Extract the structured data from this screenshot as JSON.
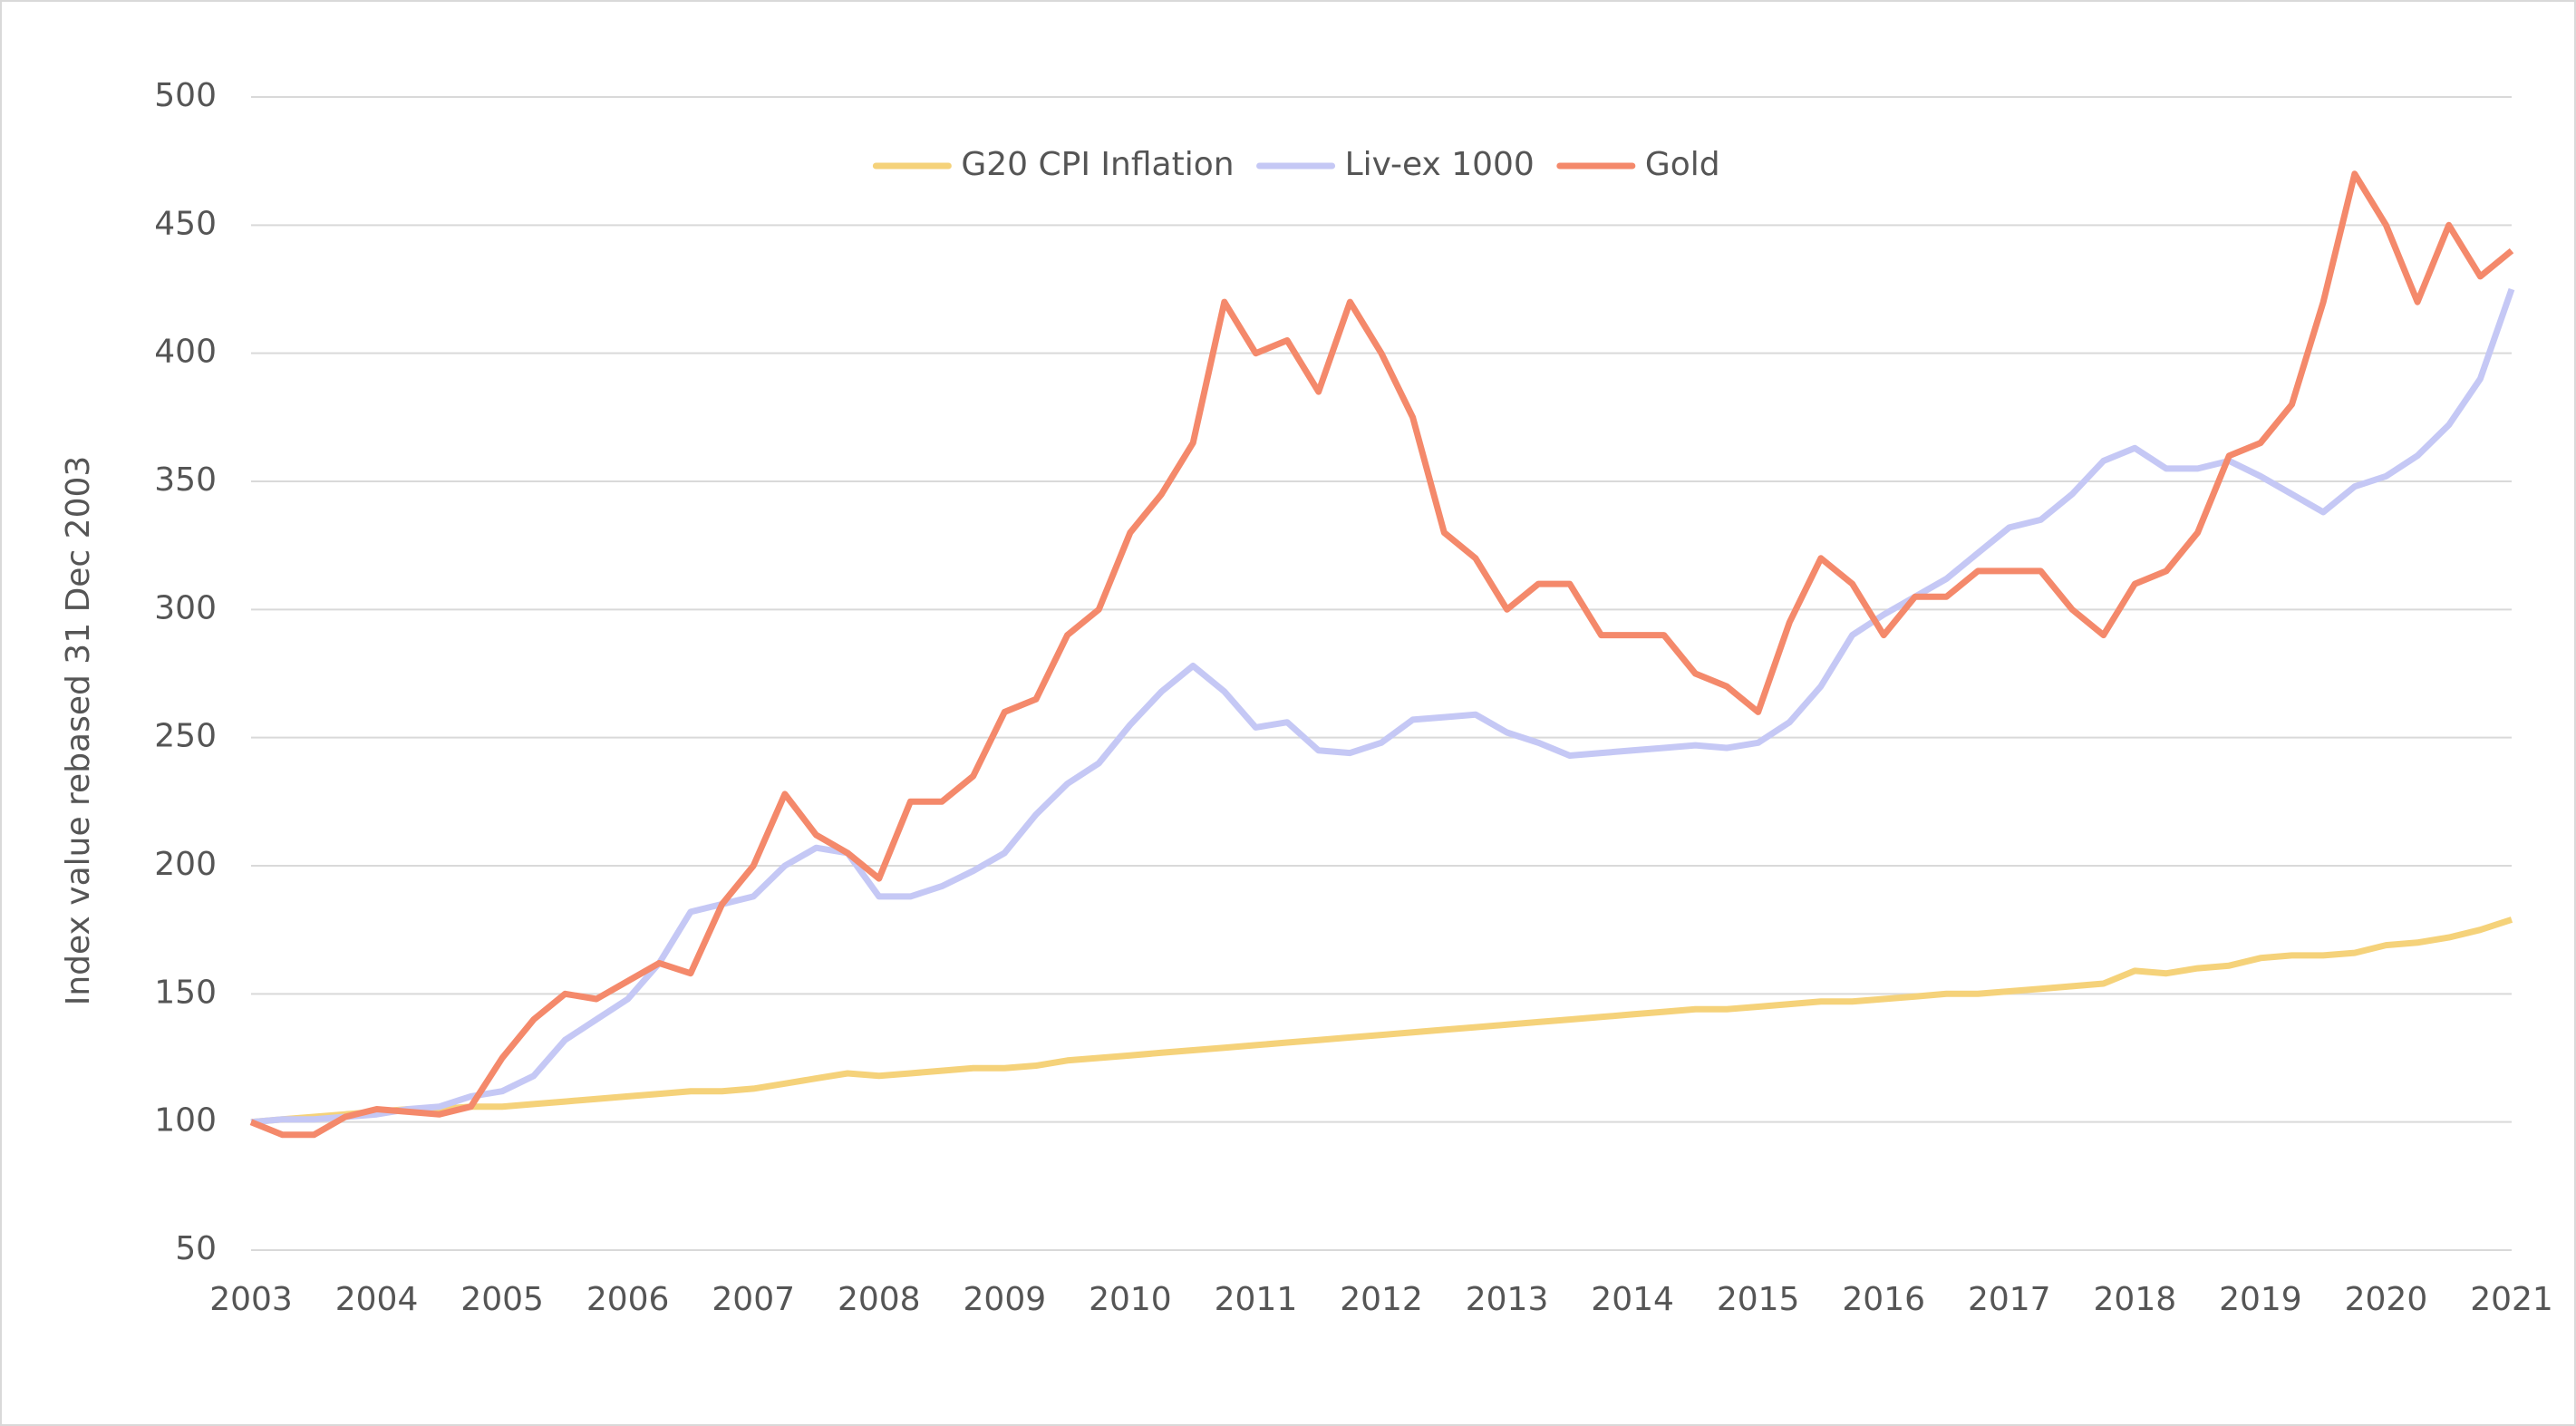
{
  "chart_data": {
    "type": "line",
    "y_label": "Index value rebased 31 Dec 2003",
    "x": [
      2003,
      2003.25,
      2003.5,
      2003.75,
      2004,
      2004.25,
      2004.5,
      2004.75,
      2005,
      2005.25,
      2005.5,
      2005.75,
      2006,
      2006.25,
      2006.5,
      2006.75,
      2007,
      2007.25,
      2007.5,
      2007.75,
      2008,
      2008.25,
      2008.5,
      2008.75,
      2009,
      2009.25,
      2009.5,
      2009.75,
      2010,
      2010.25,
      2010.5,
      2010.75,
      2011,
      2011.25,
      2011.5,
      2011.75,
      2012,
      2012.25,
      2012.5,
      2012.75,
      2013,
      2013.25,
      2013.5,
      2013.75,
      2014,
      2014.25,
      2014.5,
      2014.75,
      2015,
      2015.25,
      2015.5,
      2015.75,
      2016,
      2016.25,
      2016.5,
      2016.75,
      2017,
      2017.25,
      2017.5,
      2017.75,
      2018,
      2018.25,
      2018.5,
      2018.75,
      2019,
      2019.25,
      2019.5,
      2019.75,
      2020,
      2020.25,
      2020.5,
      2020.75,
      2021
    ],
    "series": [
      {
        "name": "G20 CPI Inflation",
        "color": "#f5d27a",
        "values": [
          100,
          101,
          102,
          103,
          104,
          105,
          105,
          106,
          106,
          107,
          108,
          109,
          110,
          111,
          112,
          112,
          113,
          115,
          117,
          119,
          118,
          119,
          120,
          121,
          121,
          122,
          124,
          125,
          126,
          127,
          128,
          129,
          130,
          131,
          132,
          133,
          134,
          135,
          136,
          137,
          138,
          139,
          140,
          141,
          142,
          143,
          144,
          144,
          145,
          146,
          147,
          147,
          148,
          149,
          150,
          150,
          151,
          152,
          153,
          154,
          159,
          158,
          160,
          161,
          164,
          165,
          165,
          166,
          169,
          170,
          172,
          175,
          179
        ]
      },
      {
        "name": "Liv-ex 1000",
        "color": "#c5c8f5",
        "values": [
          100,
          101,
          101,
          102,
          103,
          105,
          106,
          110,
          112,
          118,
          132,
          140,
          148,
          162,
          182,
          185,
          188,
          200,
          207,
          205,
          188,
          188,
          192,
          198,
          205,
          220,
          232,
          240,
          255,
          268,
          278,
          268,
          254,
          256,
          245,
          244,
          248,
          257,
          258,
          259,
          252,
          248,
          243,
          244,
          245,
          246,
          247,
          246,
          248,
          256,
          270,
          290,
          298,
          305,
          312,
          322,
          332,
          335,
          345,
          358,
          363,
          355,
          355,
          358,
          352,
          345,
          338,
          348,
          352,
          360,
          372,
          390,
          425
        ]
      },
      {
        "name": "Gold",
        "color": "#f4896b",
        "values": [
          100,
          95,
          95,
          102,
          105,
          104,
          103,
          106,
          125,
          140,
          150,
          148,
          155,
          162,
          158,
          185,
          200,
          228,
          212,
          205,
          195,
          225,
          225,
          235,
          260,
          265,
          290,
          300,
          330,
          345,
          365,
          420,
          400,
          405,
          385,
          420,
          400,
          375,
          330,
          320,
          300,
          310,
          310,
          290,
          290,
          290,
          275,
          270,
          260,
          295,
          320,
          310,
          290,
          305,
          305,
          315,
          315,
          315,
          300,
          290,
          310,
          315,
          330,
          360,
          365,
          380,
          420,
          470,
          450,
          420,
          450,
          430,
          440
        ]
      }
    ],
    "xlim": [
      2003,
      2021
    ],
    "xticks": [
      2003,
      2004,
      2005,
      2006,
      2007,
      2008,
      2009,
      2010,
      2011,
      2012,
      2013,
      2014,
      2015,
      2016,
      2017,
      2018,
      2019,
      2020,
      2021
    ],
    "ylim": [
      50,
      500
    ],
    "yticks": [
      50,
      100,
      150,
      200,
      250,
      300,
      350,
      400,
      450,
      500
    ],
    "grid": true,
    "legend": "top"
  }
}
